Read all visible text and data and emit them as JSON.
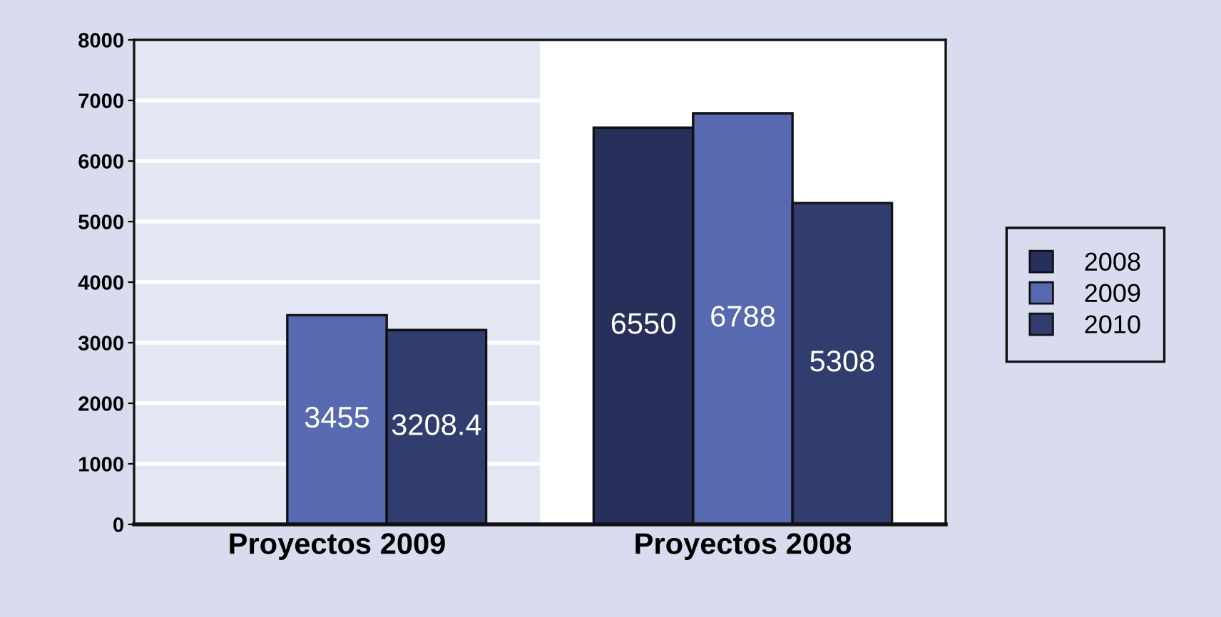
{
  "chart_data": {
    "type": "bar",
    "categories": [
      "Proyectos 2009",
      "Proyectos 2008"
    ],
    "series": [
      {
        "name": "2008",
        "color": "#26305a",
        "values": [
          null,
          6550
        ]
      },
      {
        "name": "2009",
        "color": "#5769b0",
        "values": [
          3455,
          6788
        ]
      },
      {
        "name": "2010",
        "color": "#313d6e",
        "values": [
          3208.4,
          5308
        ]
      }
    ],
    "ylim": [
      0,
      8000
    ],
    "yticks": [
      0,
      1000,
      2000,
      3000,
      4000,
      5000,
      6000,
      7000,
      8000
    ],
    "grid": "y",
    "legend": "right",
    "data_labels": true,
    "bands": [
      {
        "axis": "x",
        "from": "Proyectos 2009",
        "to": "Proyectos 2009",
        "color": "#e3e6f3"
      }
    ]
  }
}
